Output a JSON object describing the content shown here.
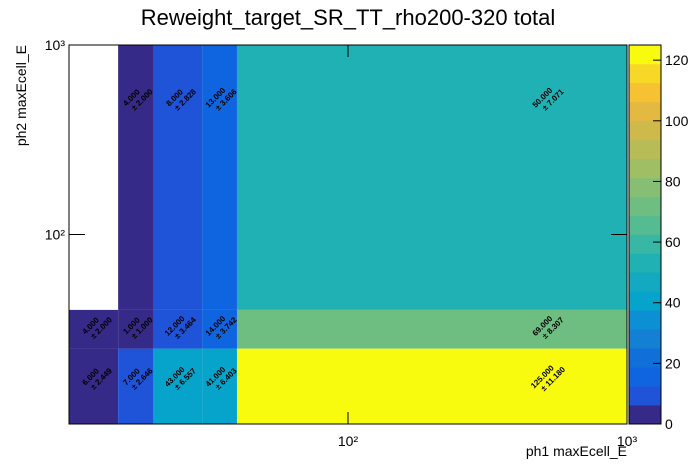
{
  "chart_data": {
    "type": "heatmap",
    "title": "Reweight_target_SR_TT_rho200-320 total",
    "x_label": "ph1 maxEcell_E",
    "y_label": "ph2 maxEcell_E",
    "x_bins": [
      10,
      15,
      20,
      30,
      40,
      1000
    ],
    "y_bins": [
      10,
      25,
      40,
      1000
    ],
    "xlim": [
      10,
      1000
    ],
    "ylim": [
      10,
      1000
    ],
    "xscale": "log",
    "yscale": "log",
    "xticks": [
      {
        "value": 100,
        "label": "10²"
      },
      {
        "value": 1000,
        "label": "10³"
      }
    ],
    "yticks": [
      {
        "value": 100,
        "label": "10²"
      },
      {
        "value": 1000,
        "label": "10³"
      }
    ],
    "values": [
      [
        6,
        7,
        43,
        41,
        125
      ],
      [
        4,
        1,
        12,
        14,
        69
      ],
      [
        null,
        4,
        8,
        13,
        50
      ]
    ],
    "value_labels": [
      [
        "6.000",
        "7.000",
        "43.000",
        "41.000",
        "125.000"
      ],
      [
        "4.000",
        "1.000",
        "12.000",
        "14.000",
        "69.000"
      ],
      [
        null,
        "4.000",
        "8.000",
        "13.000",
        "50.000"
      ]
    ],
    "errors": [
      [
        2.449,
        2.646,
        6.557,
        6.403,
        11.18
      ],
      [
        2,
        1,
        3.464,
        3.742,
        8.307
      ],
      [
        null,
        2,
        2.828,
        3.606,
        7.071
      ]
    ],
    "error_labels": [
      [
        "± 2.449",
        "± 2.646",
        "± 6.557",
        "± 6.403",
        "± 11.180"
      ],
      [
        "± 2.000",
        "± 1.000",
        "± 3.464",
        "± 3.742",
        "± 8.307"
      ],
      [
        null,
        "± 2.000",
        "± 2.828",
        "± 3.606",
        "± 7.071"
      ]
    ],
    "zlim": [
      0,
      125
    ],
    "zticks": [
      0,
      20,
      40,
      60,
      80,
      100,
      120
    ],
    "palette": [
      "#352a87",
      "#1f53d8",
      "#0f64e0",
      "#106fd9",
      "#1480d4",
      "#0c8fd3",
      "#06a4ca",
      "#13a9c0",
      "#20b1b5",
      "#38b7a5",
      "#55bc92",
      "#6ebe82",
      "#86bf73",
      "#a0be63",
      "#b8bc56",
      "#ceb94b",
      "#e4b941",
      "#f6c232",
      "#f8d827",
      "#f9fb0e"
    ]
  }
}
